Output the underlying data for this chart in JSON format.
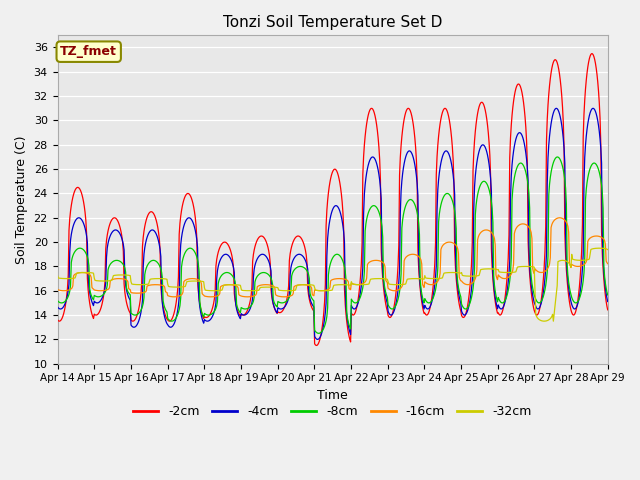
{
  "title": "Tonzi Soil Temperature Set D",
  "xlabel": "Time",
  "ylabel": "Soil Temperature (C)",
  "ylim": [
    10,
    37
  ],
  "yticks": [
    10,
    12,
    14,
    16,
    18,
    20,
    22,
    24,
    26,
    28,
    30,
    32,
    34,
    36
  ],
  "legend_label": "TZ_fmet",
  "series_labels": [
    "-2cm",
    "-4cm",
    "-8cm",
    "-16cm",
    "-32cm"
  ],
  "series_colors": [
    "#ff0000",
    "#0000cc",
    "#00cc00",
    "#ff8800",
    "#cccc00"
  ],
  "background_color": "#e8e8e8",
  "plot_bg_color": "#e8e8e8",
  "n_days": 15,
  "start_day": 14,
  "fig_bg": "#f0f0f0"
}
